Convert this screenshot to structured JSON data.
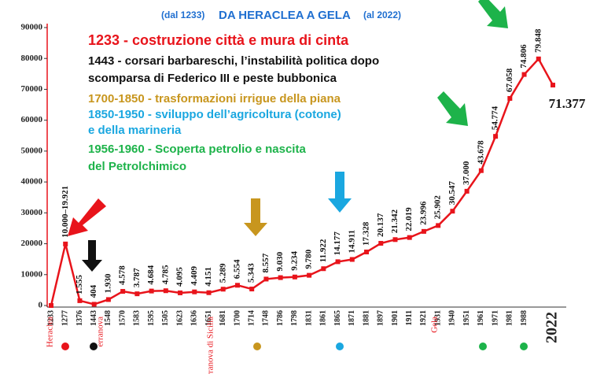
{
  "chart_data": {
    "type": "line",
    "title_left": "(dal 1233)",
    "title": "DA HERACLEA A GELA",
    "title_right": "(al 2022)",
    "categories": [
      "1233",
      "1277",
      "1376",
      "1443",
      "1548",
      "1570",
      "1583",
      "1595",
      "1505",
      "1623",
      "1636",
      "1651",
      "1681",
      "1700",
      "1714",
      "1748",
      "1786",
      "1798",
      "1831",
      "1861",
      "1865",
      "1871",
      "1881",
      "1897",
      "1901",
      "1911",
      "1921",
      "1931",
      "1940",
      "1951",
      "1961",
      "1971",
      "1981",
      "1988",
      null,
      "2022"
    ],
    "values": [
      0,
      19921,
      1555,
      404,
      1930,
      4578,
      3787,
      4684,
      4785,
      4095,
      4409,
      4151,
      5289,
      6554,
      5343,
      8557,
      9030,
      9234,
      9780,
      11922,
      14177,
      14911,
      17328,
      20137,
      21342,
      22019,
      23996,
      25902,
      30547,
      37000,
      43678,
      54774,
      67058,
      74806,
      79848,
      71377
    ],
    "value_labels": [
      null,
      "10.000–19.921",
      "1.555",
      "404",
      "1.930",
      "4.578",
      "3.787",
      "4.684",
      "4.785",
      "4.095",
      "4.409",
      "4.151",
      "5.289",
      "6.554",
      "5.343",
      "8.557",
      "9.030",
      "9.234",
      "9.780",
      "11.922",
      "14.177",
      "14.911",
      "17.328",
      "20.137",
      "21.342",
      "22.019",
      "23.996",
      "25.902",
      "30.547",
      "37.000",
      "43.678",
      "54.774",
      "67.058",
      "74.806",
      "79.848",
      "71.377"
    ],
    "color": "#e8141b",
    "ylim": [
      0,
      90000
    ],
    "yticks": [
      0,
      10000,
      20000,
      30000,
      40000,
      50000,
      60000,
      70000,
      80000,
      90000
    ],
    "annotations": [
      {
        "text": "1233 - costruzione città e mura di cinta",
        "color": "#e8141b"
      },
      {
        "text": "1443 - corsari barbareschi, l’instabilità politica dopo",
        "color": "#111111"
      },
      {
        "text": "scomparsa di Federico III e peste bubbonica",
        "color": "#111111"
      },
      {
        "text": "1700-1850 - trasformazioni irrigue della piana",
        "color": "#c8961e"
      },
      {
        "text": "1850-1950 - sviluppo dell’agricoltura (cotone)",
        "color": "#1aa7e0"
      },
      {
        "text": "e della marineria",
        "color": "#1aa7e0"
      },
      {
        "text": "1956-1960 - Scoperta petrolio e nascita",
        "color": "#1db34a"
      },
      {
        "text": " del Petrolchimico",
        "color": "#1db34a"
      }
    ],
    "place_names": [
      "Heraclea",
      "erranova",
      "erranova di Sicilia",
      "Gela"
    ]
  }
}
